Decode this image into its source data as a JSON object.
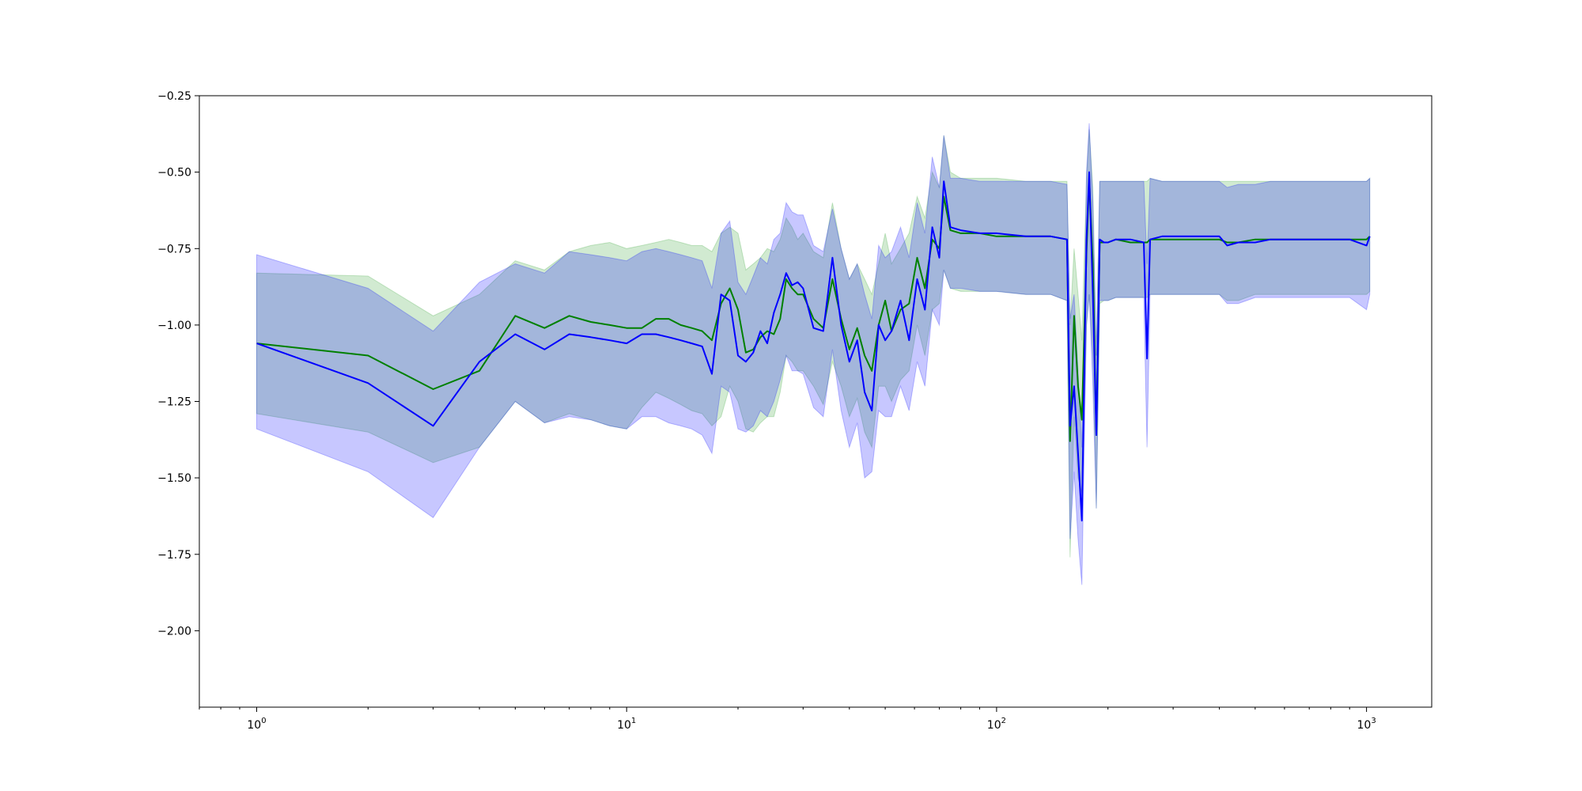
{
  "chart_data": {
    "type": "line",
    "title": "",
    "xlabel": "",
    "ylabel": "",
    "x_scale": "log",
    "xlim": [
      0.7,
      1500
    ],
    "ylim": [
      -2.25,
      -0.25
    ],
    "grid": false,
    "legend": "none",
    "x_ticks": [
      {
        "value": 1,
        "base": "10",
        "exp": "0"
      },
      {
        "value": 10,
        "base": "10",
        "exp": "1"
      },
      {
        "value": 100,
        "base": "10",
        "exp": "2"
      },
      {
        "value": 1000,
        "base": "10",
        "exp": "3"
      }
    ],
    "y_ticks": [
      {
        "value": -0.25,
        "label": "−0.25"
      },
      {
        "value": -0.5,
        "label": "−0.50"
      },
      {
        "value": -0.75,
        "label": "−0.75"
      },
      {
        "value": -1.0,
        "label": "−1.00"
      },
      {
        "value": -1.25,
        "label": "−1.25"
      },
      {
        "value": -1.5,
        "label": "−1.50"
      },
      {
        "value": -1.75,
        "label": "−1.75"
      },
      {
        "value": -2.0,
        "label": "−2.00"
      }
    ],
    "series": [
      {
        "color": "#008000",
        "band_color": "#2ca02c",
        "x": [
          1,
          2,
          3,
          4,
          5,
          6,
          7,
          8,
          9,
          10,
          11,
          12,
          13,
          14,
          15,
          16,
          17,
          18,
          19,
          20,
          21,
          22,
          23,
          24,
          25,
          26,
          27,
          28,
          29,
          30,
          32,
          34,
          36,
          38,
          40,
          42,
          44,
          46,
          48,
          50,
          52,
          55,
          58,
          61,
          64,
          67,
          70,
          72,
          75,
          80,
          90,
          100,
          120,
          140,
          155,
          158,
          162,
          166,
          170,
          175,
          178,
          182,
          186,
          190,
          195,
          200,
          210,
          230,
          250,
          255,
          260,
          280,
          300,
          350,
          400,
          420,
          450,
          500,
          550,
          600,
          700,
          800,
          900,
          1000,
          1020
        ],
        "y": [
          -1.06,
          -1.1,
          -1.21,
          -1.15,
          -0.97,
          -1.01,
          -0.97,
          -0.99,
          -1.0,
          -1.01,
          -1.01,
          -0.98,
          -0.98,
          -1.0,
          -1.01,
          -1.02,
          -1.05,
          -0.93,
          -0.88,
          -0.95,
          -1.09,
          -1.08,
          -1.04,
          -1.02,
          -1.03,
          -0.98,
          -0.85,
          -0.88,
          -0.9,
          -0.9,
          -0.98,
          -1.01,
          -0.85,
          -0.98,
          -1.08,
          -1.01,
          -1.1,
          -1.15,
          -1.0,
          -0.92,
          -1.02,
          -0.95,
          -0.93,
          -0.78,
          -0.88,
          -0.72,
          -0.75,
          -0.58,
          -0.69,
          -0.7,
          -0.7,
          -0.71,
          -0.71,
          -0.71,
          -0.72,
          -1.38,
          -0.97,
          -1.2,
          -1.31,
          -0.76,
          -0.52,
          -0.8,
          -1.36,
          -0.73,
          -0.73,
          -0.73,
          -0.72,
          -0.73,
          -0.73,
          -0.73,
          -0.72,
          -0.72,
          -0.72,
          -0.72,
          -0.72,
          -0.73,
          -0.73,
          -0.72,
          -0.72,
          -0.72,
          -0.72,
          -0.72,
          -0.72,
          -0.72,
          -0.71
        ],
        "lower": [
          -1.29,
          -1.35,
          -1.45,
          -1.4,
          -1.25,
          -1.32,
          -1.29,
          -1.31,
          -1.33,
          -1.34,
          -1.27,
          -1.22,
          -1.24,
          -1.26,
          -1.28,
          -1.29,
          -1.33,
          -1.3,
          -1.2,
          -1.25,
          -1.34,
          -1.35,
          -1.32,
          -1.3,
          -1.3,
          -1.22,
          -1.1,
          -1.12,
          -1.15,
          -1.15,
          -1.2,
          -1.26,
          -1.12,
          -1.2,
          -1.3,
          -1.24,
          -1.35,
          -1.4,
          -1.2,
          -1.2,
          -1.25,
          -1.18,
          -1.15,
          -1.0,
          -1.1,
          -0.95,
          -0.93,
          -0.82,
          -0.88,
          -0.89,
          -0.89,
          -0.89,
          -0.9,
          -0.9,
          -0.92,
          -1.76,
          -1.3,
          -1.5,
          -1.55,
          -1.0,
          -0.9,
          -1.1,
          -1.6,
          -0.93,
          -0.92,
          -0.92,
          -0.91,
          -0.91,
          -0.91,
          -0.91,
          -0.9,
          -0.9,
          -0.9,
          -0.9,
          -0.9,
          -0.92,
          -0.92,
          -0.9,
          -0.9,
          -0.9,
          -0.9,
          -0.9,
          -0.9,
          -0.9,
          -0.89
        ],
        "upper": [
          -0.83,
          -0.84,
          -0.97,
          -0.9,
          -0.79,
          -0.82,
          -0.76,
          -0.74,
          -0.73,
          -0.75,
          -0.74,
          -0.73,
          -0.72,
          -0.73,
          -0.74,
          -0.74,
          -0.76,
          -0.7,
          -0.68,
          -0.7,
          -0.82,
          -0.8,
          -0.78,
          -0.75,
          -0.76,
          -0.72,
          -0.65,
          -0.68,
          -0.72,
          -0.7,
          -0.76,
          -0.78,
          -0.6,
          -0.75,
          -0.85,
          -0.8,
          -0.85,
          -0.9,
          -0.8,
          -0.7,
          -0.8,
          -0.75,
          -0.7,
          -0.58,
          -0.65,
          -0.5,
          -0.55,
          -0.38,
          -0.5,
          -0.52,
          -0.52,
          -0.52,
          -0.53,
          -0.53,
          -0.53,
          -1.0,
          -0.75,
          -0.9,
          -1.05,
          -0.52,
          -0.36,
          -0.55,
          -1.1,
          -0.53,
          -0.53,
          -0.53,
          -0.53,
          -0.53,
          -0.53,
          -0.53,
          -0.52,
          -0.53,
          -0.53,
          -0.53,
          -0.53,
          -0.53,
          -0.53,
          -0.53,
          -0.53,
          -0.53,
          -0.53,
          -0.53,
          -0.53,
          -0.53,
          -0.52
        ]
      },
      {
        "color": "#0000ff",
        "band_color": "#0000ff",
        "x": [
          1,
          2,
          3,
          4,
          5,
          6,
          7,
          8,
          9,
          10,
          11,
          12,
          13,
          14,
          15,
          16,
          17,
          18,
          19,
          20,
          21,
          22,
          23,
          24,
          25,
          26,
          27,
          28,
          29,
          30,
          32,
          34,
          36,
          38,
          40,
          42,
          44,
          46,
          48,
          50,
          52,
          55,
          58,
          61,
          64,
          67,
          70,
          72,
          75,
          80,
          90,
          100,
          120,
          140,
          155,
          158,
          162,
          166,
          170,
          175,
          178,
          182,
          186,
          190,
          195,
          200,
          210,
          230,
          250,
          255,
          260,
          280,
          300,
          350,
          400,
          420,
          450,
          500,
          550,
          600,
          700,
          800,
          900,
          1000,
          1020
        ],
        "y": [
          -1.06,
          -1.19,
          -1.33,
          -1.12,
          -1.03,
          -1.08,
          -1.03,
          -1.04,
          -1.05,
          -1.06,
          -1.03,
          -1.03,
          -1.04,
          -1.05,
          -1.06,
          -1.07,
          -1.16,
          -0.9,
          -0.92,
          -1.1,
          -1.12,
          -1.09,
          -1.02,
          -1.06,
          -0.96,
          -0.9,
          -0.83,
          -0.87,
          -0.86,
          -0.88,
          -1.01,
          -1.02,
          -0.78,
          -1.0,
          -1.12,
          -1.05,
          -1.22,
          -1.28,
          -1.0,
          -1.05,
          -1.02,
          -0.92,
          -1.05,
          -0.85,
          -0.95,
          -0.68,
          -0.78,
          -0.53,
          -0.68,
          -0.69,
          -0.7,
          -0.7,
          -0.71,
          -0.71,
          -0.72,
          -1.33,
          -1.2,
          -1.42,
          -1.64,
          -0.72,
          -0.5,
          -0.9,
          -1.36,
          -0.72,
          -0.73,
          -0.73,
          -0.72,
          -0.72,
          -0.73,
          -1.11,
          -0.72,
          -0.71,
          -0.71,
          -0.71,
          -0.71,
          -0.74,
          -0.73,
          -0.73,
          -0.72,
          -0.72,
          -0.72,
          -0.72,
          -0.72,
          -0.74,
          -0.71
        ],
        "lower": [
          -1.34,
          -1.48,
          -1.63,
          -1.4,
          -1.25,
          -1.32,
          -1.3,
          -1.31,
          -1.33,
          -1.34,
          -1.3,
          -1.3,
          -1.32,
          -1.33,
          -1.34,
          -1.36,
          -1.42,
          -1.2,
          -1.22,
          -1.34,
          -1.35,
          -1.33,
          -1.28,
          -1.3,
          -1.25,
          -1.18,
          -1.1,
          -1.15,
          -1.15,
          -1.16,
          -1.27,
          -1.3,
          -1.08,
          -1.28,
          -1.4,
          -1.32,
          -1.5,
          -1.48,
          -1.28,
          -1.3,
          -1.3,
          -1.2,
          -1.28,
          -1.12,
          -1.2,
          -0.95,
          -1.0,
          -0.82,
          -0.88,
          -0.88,
          -0.89,
          -0.89,
          -0.9,
          -0.9,
          -0.92,
          -1.7,
          -1.48,
          -1.7,
          -1.85,
          -1.0,
          -0.9,
          -1.2,
          -1.6,
          -0.92,
          -0.92,
          -0.92,
          -0.91,
          -0.91,
          -0.91,
          -1.4,
          -0.9,
          -0.9,
          -0.9,
          -0.9,
          -0.9,
          -0.93,
          -0.93,
          -0.91,
          -0.91,
          -0.91,
          -0.91,
          -0.91,
          -0.91,
          -0.95,
          -0.9
        ],
        "upper": [
          -0.77,
          -0.88,
          -1.02,
          -0.86,
          -0.8,
          -0.83,
          -0.76,
          -0.77,
          -0.78,
          -0.79,
          -0.76,
          -0.75,
          -0.76,
          -0.77,
          -0.78,
          -0.79,
          -0.88,
          -0.7,
          -0.66,
          -0.86,
          -0.9,
          -0.84,
          -0.78,
          -0.8,
          -0.72,
          -0.7,
          -0.6,
          -0.63,
          -0.64,
          -0.64,
          -0.74,
          -0.76,
          -0.62,
          -0.75,
          -0.85,
          -0.8,
          -0.9,
          -0.98,
          -0.74,
          -0.78,
          -0.76,
          -0.68,
          -0.78,
          -0.6,
          -0.7,
          -0.45,
          -0.55,
          -0.38,
          -0.52,
          -0.52,
          -0.53,
          -0.53,
          -0.53,
          -0.53,
          -0.54,
          -0.98,
          -0.9,
          -1.15,
          -1.4,
          -0.5,
          -0.34,
          -0.6,
          -1.1,
          -0.53,
          -0.53,
          -0.53,
          -0.53,
          -0.53,
          -0.53,
          -0.8,
          -0.52,
          -0.53,
          -0.53,
          -0.53,
          -0.53,
          -0.55,
          -0.54,
          -0.54,
          -0.53,
          -0.53,
          -0.53,
          -0.53,
          -0.53,
          -0.53,
          -0.52
        ]
      }
    ]
  }
}
